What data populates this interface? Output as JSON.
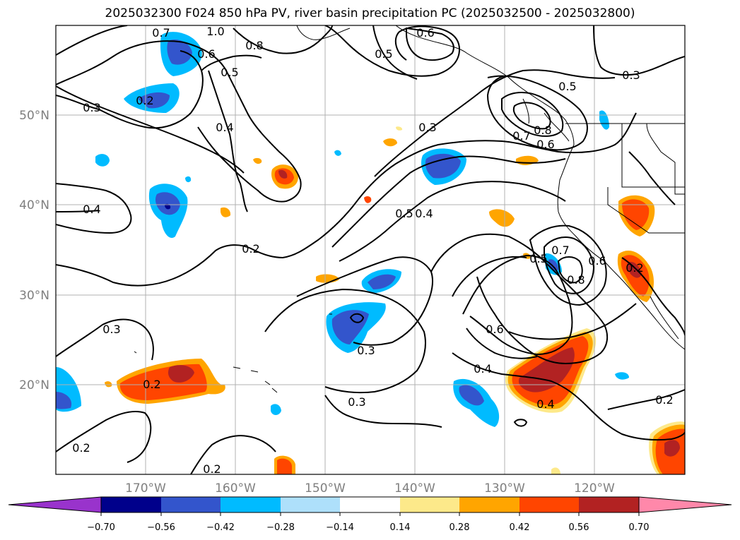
{
  "title": "2025032300 F024 850 hPa PV, river basin precipitation PC (2025032500 - 2025032800)",
  "map": {
    "lat_labels": [
      "50°N",
      "40°N",
      "30°N",
      "20°N"
    ],
    "lon_labels": [
      "170°W",
      "160°W",
      "150°W",
      "140°W",
      "130°W",
      "120°W"
    ],
    "contour_labels": [
      "0.3",
      "0.2",
      "0.7",
      "1.0",
      "0.6",
      "0.8",
      "0.5",
      "0.4",
      "0.5",
      "0.6",
      "0.3",
      "0.3",
      "0.4",
      "0.2",
      "0.3",
      "0.3",
      "0.5",
      "0.4",
      "0.5",
      "0.7",
      "0.8",
      "0.6",
      "0.2",
      "0.3",
      "0.2",
      "0.6",
      "0.4",
      "0.4",
      "0.2",
      "0.2",
      "0.2",
      "0.8",
      "0.7",
      "0.6",
      "0.5"
    ]
  },
  "colorbar": {
    "ticks": [
      "−0.70",
      "−0.56",
      "−0.42",
      "−0.28",
      "−0.14",
      "0.14",
      "0.28",
      "0.42",
      "0.56",
      "0.70"
    ],
    "colors": [
      "#9933cc",
      "#00008b",
      "#3355cc",
      "#00bbff",
      "#aee0fb",
      "#ffffff",
      "#fde98a",
      "#ffa500",
      "#ff4500",
      "#b22222",
      "#ff88aa"
    ]
  },
  "palette": {
    "neg_strong": "#3355cc",
    "neg_mid": "#00bbff",
    "neg_light": "#aee0fb",
    "neg_darkest": "#00008b",
    "pos_light": "#fde98a",
    "pos_mid": "#ffa500",
    "pos_strong": "#ff4500",
    "pos_darkest": "#b22222"
  }
}
